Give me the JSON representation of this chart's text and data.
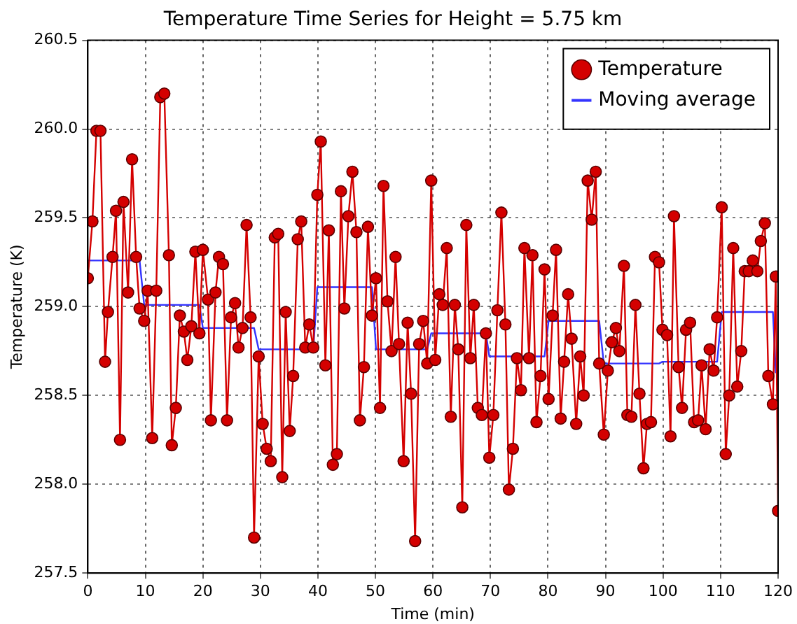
{
  "chart_data": {
    "type": "line",
    "title": "Temperature Time Series for Height = 5.75 km",
    "xlabel": "Time (min)",
    "ylabel": "Temperature (K)",
    "xlim": [
      0,
      120
    ],
    "xticks": [
      0,
      10,
      20,
      30,
      40,
      50,
      60,
      70,
      80,
      90,
      100,
      110,
      120
    ],
    "ylim": [
      257.5,
      260.5
    ],
    "yticks": [
      257.5,
      {
        "value": 258,
        "label": "258.0"
      },
      258.5,
      {
        "value": 259,
        "label": "259.0"
      },
      259.5,
      {
        "value": 260,
        "label": "260.0"
      },
      260.5
    ],
    "grid": true,
    "legend": "top right",
    "series": [
      {
        "name": "Temperature",
        "type": "line",
        "color": "#d40000",
        "marker": "circle",
        "line_style": "solid",
        "x": [
          0,
          0.8,
          1.5,
          2.2,
          3.0,
          3.5,
          4.3,
          4.9,
          5.6,
          6.2,
          7.0,
          7.7,
          8.4,
          9.0,
          9.8,
          10.4,
          11.2,
          11.9,
          12.6,
          13.3,
          14.1,
          14.6,
          15.3,
          16.0,
          16.7,
          17.3,
          18.0,
          18.7,
          19.4,
          20.0,
          20.9,
          21.4,
          22.2,
          22.8,
          23.5,
          24.2,
          24.9,
          25.6,
          26.2,
          26.9,
          27.6,
          28.3,
          28.9,
          29.7,
          30.4,
          31.1,
          31.8,
          32.5,
          33.1,
          33.8,
          34.4,
          35.1,
          35.7,
          36.5,
          37.1,
          37.8,
          38.5,
          39.2,
          39.9,
          40.5,
          41.3,
          41.9,
          42.6,
          43.3,
          44.0,
          44.6,
          45.3,
          46.0,
          46.7,
          47.3,
          48.0,
          48.7,
          49.4,
          50.1,
          50.8,
          51.4,
          52.1,
          52.8,
          53.5,
          54.1,
          54.9,
          55.6,
          56.2,
          56.9,
          57.6,
          58.3,
          59.0,
          59.7,
          60.4,
          61.1,
          61.7,
          62.4,
          63.1,
          63.8,
          64.4,
          65.1,
          65.8,
          66.5,
          67.1,
          67.8,
          68.5,
          69.2,
          69.8,
          70.5,
          71.2,
          71.9,
          72.6,
          73.2,
          73.9,
          74.6,
          75.3,
          75.9,
          76.7,
          77.3,
          78.0,
          78.7,
          79.4,
          80.1,
          80.8,
          81.4,
          82.2,
          82.8,
          83.5,
          84.1,
          84.9,
          85.6,
          86.2,
          86.9,
          87.6,
          88.3,
          88.9,
          89.7,
          90.4,
          91.1,
          91.8,
          92.4,
          93.2,
          93.8,
          94.5,
          95.2,
          95.9,
          96.6,
          97.2,
          97.9,
          98.6,
          99.3,
          99.9,
          100.7,
          101.3,
          101.9,
          102.7,
          103.3,
          104.0,
          104.7,
          105.4,
          106.1,
          106.7,
          107.4,
          108.1,
          108.8,
          109.4,
          110.2,
          110.9,
          111.5,
          112.2,
          112.9,
          113.6,
          114.2,
          114.9,
          115.6,
          116.4,
          117.0,
          117.7,
          118.3,
          119.1,
          119.6,
          120
        ],
        "values": [
          259.16,
          259.48,
          259.99,
          259.99,
          258.69,
          258.97,
          259.28,
          259.54,
          258.25,
          259.59,
          259.08,
          259.83,
          259.28,
          258.99,
          258.92,
          259.09,
          258.26,
          259.09,
          260.18,
          260.2,
          259.29,
          258.22,
          258.43,
          258.95,
          258.86,
          258.7,
          258.89,
          259.31,
          258.85,
          259.32,
          259.04,
          258.36,
          259.08,
          259.28,
          259.24,
          258.36,
          258.94,
          259.02,
          258.77,
          258.88,
          259.46,
          258.94,
          257.7,
          258.72,
          258.34,
          258.2,
          258.13,
          259.39,
          259.41,
          258.04,
          258.97,
          258.3,
          258.61,
          259.38,
          259.48,
          258.77,
          258.9,
          258.77,
          259.63,
          259.93,
          258.67,
          259.43,
          258.11,
          258.17,
          259.65,
          258.99,
          259.51,
          259.76,
          259.42,
          258.36,
          258.66,
          259.45,
          258.95,
          259.16,
          258.43,
          259.68,
          259.03,
          258.75,
          259.28,
          258.79,
          258.13,
          258.91,
          258.51,
          257.68,
          258.79,
          258.92,
          258.68,
          259.71,
          258.7,
          259.07,
          259.01,
          259.33,
          258.38,
          259.01,
          258.76,
          257.87,
          259.46,
          258.71,
          259.01,
          258.43,
          258.39,
          258.85,
          258.15,
          258.39,
          258.98,
          259.53,
          258.9,
          257.97,
          258.2,
          258.71,
          258.53,
          259.33,
          258.71,
          259.29,
          258.35,
          258.61,
          259.21,
          258.48,
          258.95,
          259.32,
          258.37,
          258.69,
          259.07,
          258.82,
          258.34,
          258.72,
          258.5,
          259.71,
          259.49,
          259.76,
          258.68,
          258.28,
          258.64,
          258.8,
          258.88,
          258.75,
          259.23,
          258.39,
          258.38,
          259.01,
          258.51,
          258.09,
          258.34,
          258.35,
          259.28,
          259.25,
          258.87,
          258.84,
          258.27,
          259.51,
          258.66,
          258.43,
          258.87,
          258.91,
          258.35,
          258.36,
          258.67,
          258.31,
          258.76,
          258.64,
          258.94,
          259.56,
          258.17,
          258.5,
          259.33,
          258.55,
          258.75,
          259.2,
          259.2,
          259.26,
          259.2,
          259.37,
          259.47,
          258.61,
          258.45,
          259.17,
          257.85
        ]
      },
      {
        "name": "Moving average",
        "type": "line",
        "color": "#3333ff",
        "marker": "none",
        "line_style": "solid",
        "x": [
          0,
          9.0,
          9.8,
          19.4,
          20.0,
          28.9,
          29.7,
          39.2,
          39.9,
          49.4,
          50.1,
          59.0,
          59.7,
          69.2,
          69.8,
          79.4,
          80.1,
          88.9,
          89.7,
          99.3,
          99.9,
          109.4,
          110.2,
          119.1,
          119.6,
          120
        ],
        "values": [
          259.26,
          259.26,
          259.01,
          259.01,
          258.88,
          258.88,
          258.76,
          258.76,
          259.11,
          259.11,
          258.76,
          258.76,
          258.85,
          258.85,
          258.72,
          258.72,
          258.92,
          258.92,
          258.68,
          258.68,
          258.69,
          258.69,
          258.97,
          258.97,
          258.63,
          258.63
        ]
      }
    ]
  }
}
